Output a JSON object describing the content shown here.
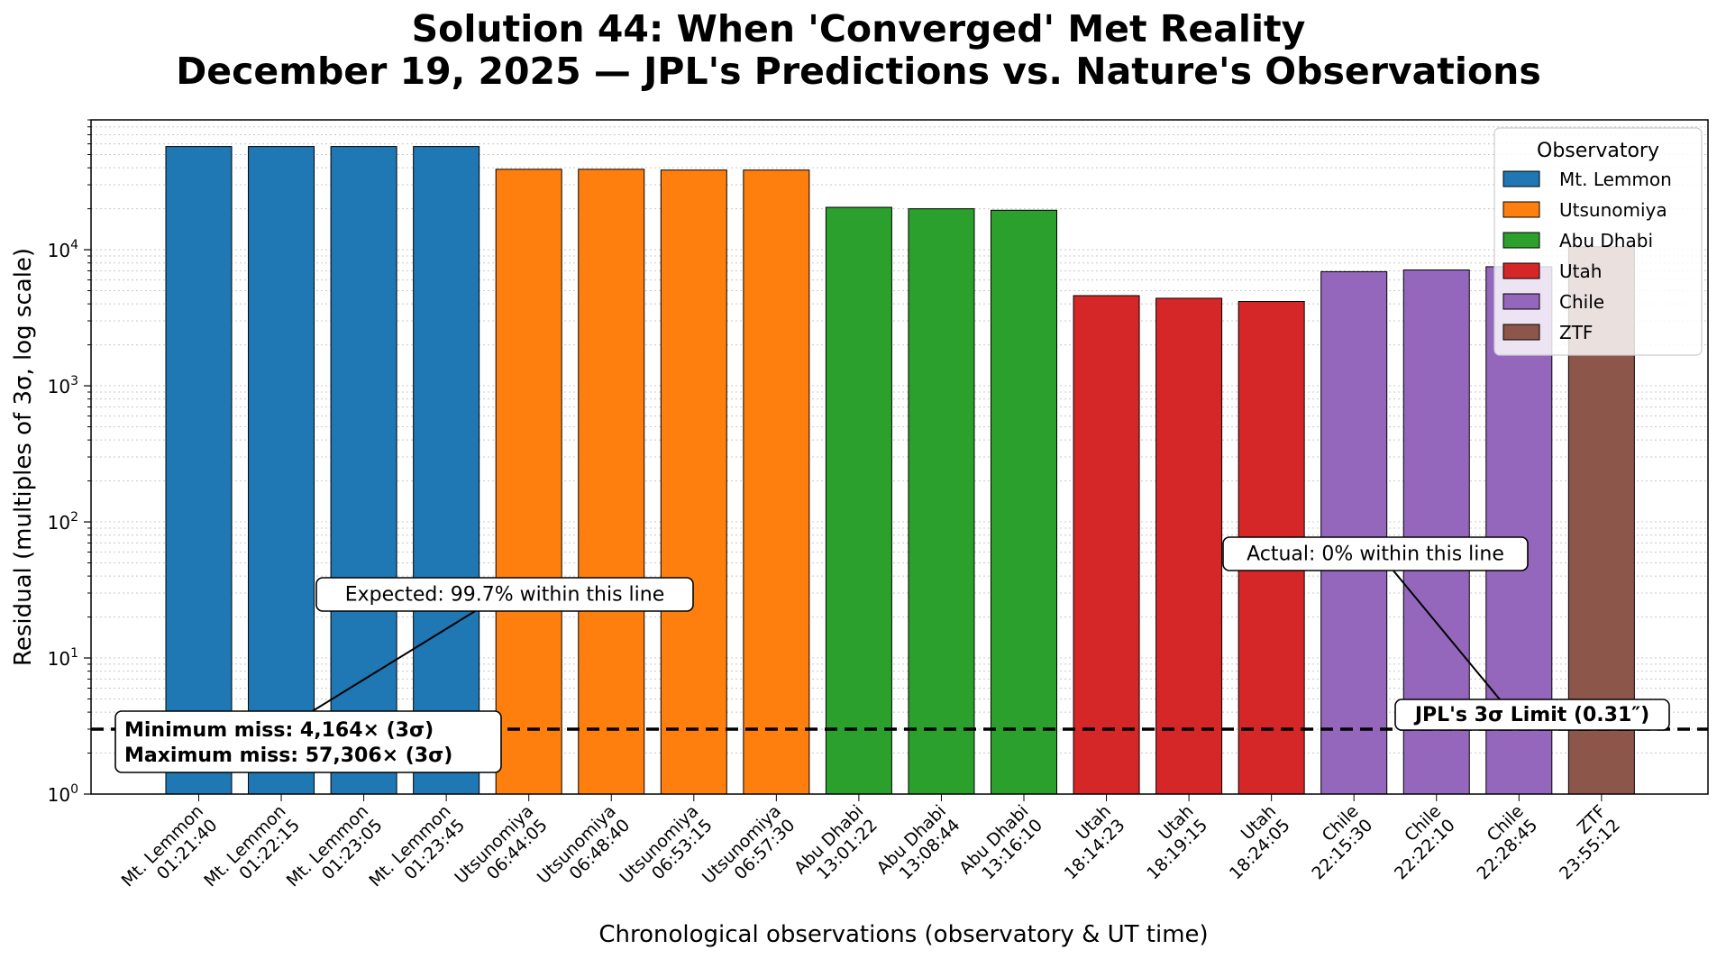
{
  "title_line1": "Solution 44: When 'Converged' Met Reality",
  "title_line2": "December 19, 2025 — JPL's Predictions vs. Nature's Observations",
  "chart_data": {
    "type": "bar",
    "xlabel": "Chronological observations (observatory & UT time)",
    "ylabel": "Residual (multiples of 3σ, log scale)",
    "y_scale": "log",
    "ylim": [
      1,
      90000
    ],
    "y_ticks": [
      {
        "value": 1,
        "base": "10",
        "exp": "0"
      },
      {
        "value": 10,
        "base": "10",
        "exp": "1"
      },
      {
        "value": 100,
        "base": "10",
        "exp": "2"
      },
      {
        "value": 1000,
        "base": "10",
        "exp": "3"
      },
      {
        "value": 10000,
        "base": "10",
        "exp": "4"
      }
    ],
    "grid": "y minor dotted",
    "categories": [
      {
        "observatory": "Mt. Lemmon",
        "time": "01:21:40"
      },
      {
        "observatory": "Mt. Lemmon",
        "time": "01:22:15"
      },
      {
        "observatory": "Mt. Lemmon",
        "time": "01:23:05"
      },
      {
        "observatory": "Mt. Lemmon",
        "time": "01:23:45"
      },
      {
        "observatory": "Utsunomiya",
        "time": "06:44:05"
      },
      {
        "observatory": "Utsunomiya",
        "time": "06:48:40"
      },
      {
        "observatory": "Utsunomiya",
        "time": "06:53:15"
      },
      {
        "observatory": "Utsunomiya",
        "time": "06:57:30"
      },
      {
        "observatory": "Abu Dhabi",
        "time": "13:01:22"
      },
      {
        "observatory": "Abu Dhabi",
        "time": "13:08:44"
      },
      {
        "observatory": "Abu Dhabi",
        "time": "13:16:10"
      },
      {
        "observatory": "Utah",
        "time": "18:14:23"
      },
      {
        "observatory": "Utah",
        "time": "18:19:15"
      },
      {
        "observatory": "Utah",
        "time": "18:24:05"
      },
      {
        "observatory": "Chile",
        "time": "22:15:30"
      },
      {
        "observatory": "Chile",
        "time": "22:22:10"
      },
      {
        "observatory": "Chile",
        "time": "22:28:45"
      },
      {
        "observatory": "ZTF",
        "time": "23:55:12"
      }
    ],
    "values": [
      57306,
      57306,
      57306,
      57306,
      39000,
      39000,
      38500,
      38500,
      20500,
      20000,
      19500,
      4600,
      4400,
      4164,
      6900,
      7100,
      7500,
      10500
    ],
    "threshold": {
      "value": 3,
      "label": "JPL's 3σ Limit (0.31″)"
    },
    "annotations": [
      {
        "text": "Expected: 99.7% within this line"
      },
      {
        "text": "Actual: 0% within this line"
      }
    ],
    "summary_lines": [
      "Minimum miss: 4,164× (3σ)",
      "Maximum miss: 57,306× (3σ)"
    ],
    "legend": {
      "title": "Observatory",
      "placement": "top-right",
      "entries": [
        {
          "name": "Mt. Lemmon",
          "color": "#1f77b4"
        },
        {
          "name": "Utsunomiya",
          "color": "#ff7f0e"
        },
        {
          "name": "Abu Dhabi",
          "color": "#2ca02c"
        },
        {
          "name": "Utah",
          "color": "#d62728"
        },
        {
          "name": "Chile",
          "color": "#9467bd"
        },
        {
          "name": "ZTF",
          "color": "#8c564b"
        }
      ]
    }
  }
}
